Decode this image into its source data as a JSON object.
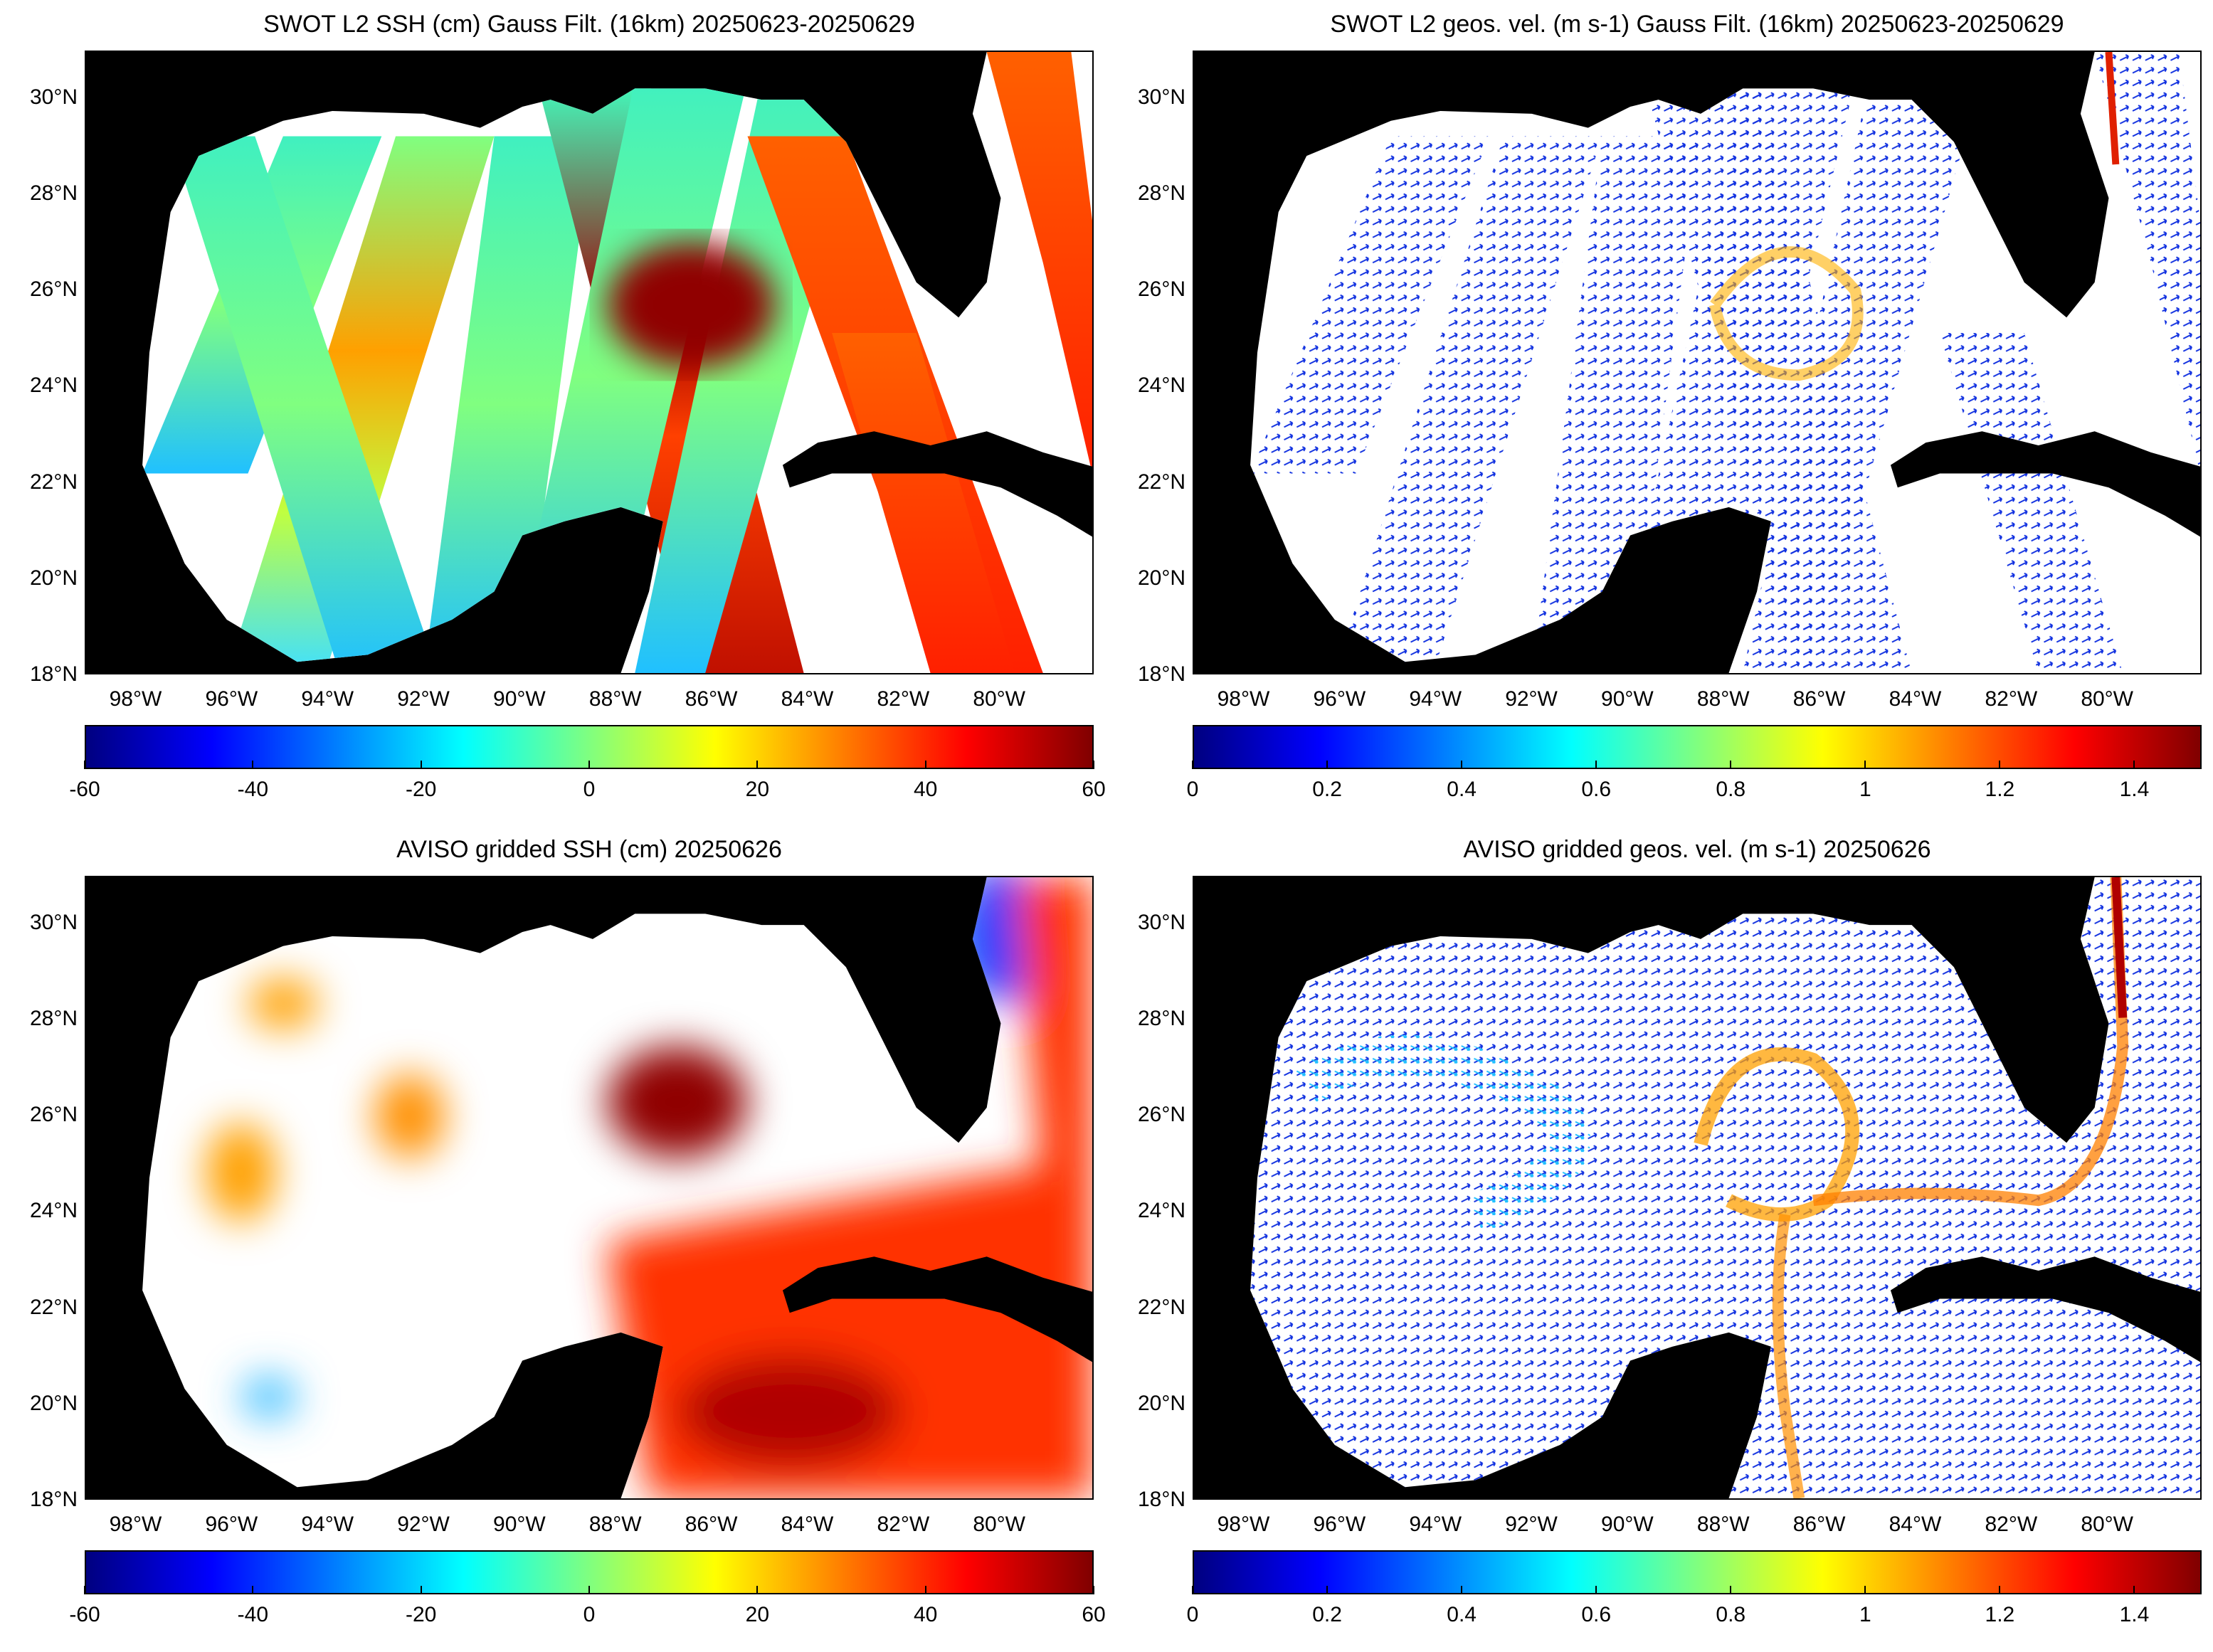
{
  "panels": [
    {
      "id": "swot-ssh",
      "title": "SWOT L2 SSH (cm) Gauss Filt. (16km) 20250623-20250629",
      "cbar": {
        "min": -60,
        "max": 60,
        "ticks": [
          "-60",
          "-40",
          "-20",
          "0",
          "20",
          "40",
          "60"
        ],
        "values": [
          -60,
          -40,
          -20,
          0,
          20,
          40,
          60
        ]
      }
    },
    {
      "id": "swot-vel",
      "title": "SWOT L2 geos. vel. (m s-1) Gauss Filt. (16km) 20250623-20250629",
      "cbar": {
        "min": 0,
        "max": 1.5,
        "ticks": [
          "0",
          "0.2",
          "0.4",
          "0.6",
          "0.8",
          "1",
          "1.2",
          "1.4"
        ],
        "values": [
          0,
          0.2,
          0.4,
          0.6,
          0.8,
          1,
          1.2,
          1.4
        ]
      }
    },
    {
      "id": "aviso-ssh",
      "title": "AVISO gridded SSH (cm) 20250626",
      "cbar": {
        "min": -60,
        "max": 60,
        "ticks": [
          "-60",
          "-40",
          "-20",
          "0",
          "20",
          "40",
          "60"
        ],
        "values": [
          -60,
          -40,
          -20,
          0,
          20,
          40,
          60
        ]
      }
    },
    {
      "id": "aviso-vel",
      "title": "AVISO gridded geos. vel. (m s-1)  20250626",
      "cbar": {
        "min": 0,
        "max": 1.5,
        "ticks": [
          "0",
          "0.2",
          "0.4",
          "0.6",
          "0.8",
          "1",
          "1.2",
          "1.4"
        ],
        "values": [
          0,
          0.2,
          0.4,
          0.6,
          0.8,
          1,
          1.2,
          1.4
        ]
      }
    }
  ],
  "axes": {
    "lat_ticks": [
      "30°N",
      "28°N",
      "26°N",
      "24°N",
      "22°N",
      "20°N",
      "18°N"
    ],
    "lat_values": [
      30,
      28,
      26,
      24,
      22,
      20,
      18
    ],
    "lon_ticks": [
      "98°W",
      "96°W",
      "94°W",
      "92°W",
      "90°W",
      "88°W",
      "86°W",
      "84°W",
      "82°W",
      "80°W"
    ],
    "lon_values": [
      98,
      96,
      94,
      92,
      90,
      88,
      86,
      84,
      82,
      80
    ],
    "lat_range": [
      18,
      30.97
    ],
    "lon_range_W": [
      99.06,
      78.03
    ]
  },
  "colormap": "jet",
  "colors": {
    "land": "#000000",
    "nodata": "#ffffff"
  }
}
